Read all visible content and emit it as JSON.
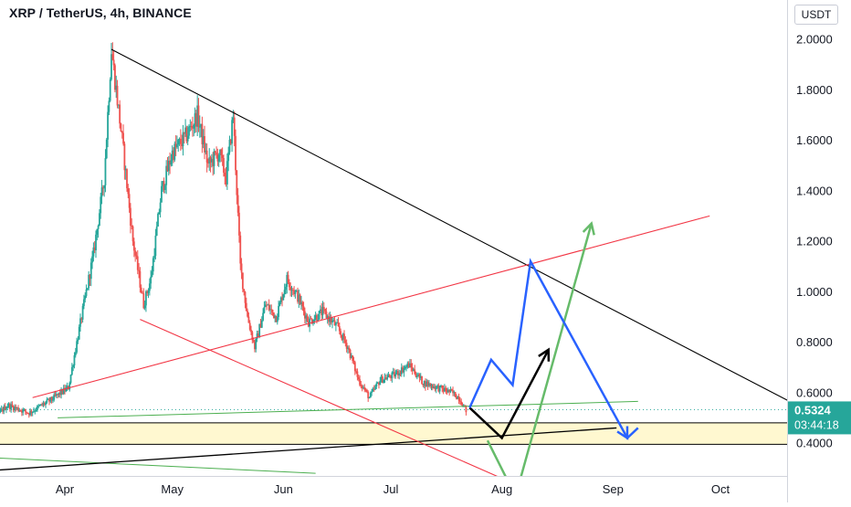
{
  "header": {
    "title": "XRP / TetherUS, 4h, BINANCE",
    "currency": "USDT"
  },
  "chart_data": {
    "type": "candlestick",
    "title": "XRP / TetherUS, 4h, BINANCE",
    "ylim": [
      0.26,
      2.1
    ],
    "y_ticks": [
      0.4,
      0.6,
      0.8,
      1.0,
      1.2,
      1.4,
      1.6,
      1.8,
      2.0
    ],
    "y_tick_labels": [
      "0.4000",
      "0.6000",
      "0.8000",
      "1.0000",
      "1.2000",
      "1.4000",
      "1.6000",
      "1.8000",
      "2.0000"
    ],
    "x_tick_labels": [
      "Apr",
      "May",
      "Jun",
      "Jul",
      "Aug",
      "Sep",
      "Oct"
    ],
    "last_price": "0.5324",
    "countdown": "03:44:18",
    "colors": {
      "up": "#26a69a",
      "down": "#ef5350",
      "support_zone": "#fff8d0"
    },
    "price_path": [
      [
        "Mar 04",
        0.44
      ],
      [
        "Mar 10",
        0.47
      ],
      [
        "Mar 16",
        0.55
      ],
      [
        "Mar 22",
        0.52
      ],
      [
        "Mar 28",
        0.57
      ],
      [
        "Apr 02",
        0.62
      ],
      [
        "Apr 05",
        0.85
      ],
      [
        "Apr 09",
        1.15
      ],
      [
        "Apr 12",
        1.45
      ],
      [
        "Apr 14",
        1.96
      ],
      [
        "Apr 17",
        1.6
      ],
      [
        "Apr 20",
        1.2
      ],
      [
        "Apr 23",
        0.95
      ],
      [
        "Apr 25",
        1.05
      ],
      [
        "Apr 28",
        1.4
      ],
      [
        "May 01",
        1.55
      ],
      [
        "May 05",
        1.62
      ],
      [
        "May 08",
        1.7
      ],
      [
        "May 11",
        1.5
      ],
      [
        "May 14",
        1.55
      ],
      [
        "May 16",
        1.45
      ],
      [
        "May 18",
        1.7
      ],
      [
        "May 20",
        1.1
      ],
      [
        "May 22",
        0.9
      ],
      [
        "May 24",
        0.78
      ],
      [
        "May 27",
        0.95
      ],
      [
        "May 30",
        0.9
      ],
      [
        "Jun 02",
        1.05
      ],
      [
        "Jun 05",
        0.98
      ],
      [
        "Jun 08",
        0.88
      ],
      [
        "Jun 12",
        0.92
      ],
      [
        "Jun 16",
        0.86
      ],
      [
        "Jun 19",
        0.78
      ],
      [
        "Jun 22",
        0.65
      ],
      [
        "Jun 25",
        0.58
      ],
      [
        "Jun 28",
        0.65
      ],
      [
        "Jul 02",
        0.67
      ],
      [
        "Jul 06",
        0.71
      ],
      [
        "Jul 10",
        0.64
      ],
      [
        "Jul 14",
        0.62
      ],
      [
        "Jul 18",
        0.6
      ],
      [
        "Jul 20",
        0.58
      ],
      [
        "Jul 22",
        0.53
      ]
    ],
    "drawings": {
      "descending_trendline": [
        [
          "Apr 14",
          1.96
        ],
        [
          "Oct 21",
          0.56
        ]
      ],
      "ascending_trendline_upper": [
        [
          "Mar 23",
          0.58
        ],
        [
          "Sep 28",
          1.3
        ]
      ],
      "lower_channel_line": [
        [
          "Apr 22",
          0.89
        ],
        [
          "Aug 01",
          0.26
        ]
      ],
      "green_near_line": [
        [
          "Mar 30",
          0.5
        ],
        [
          "Sep 08",
          0.565
        ]
      ],
      "black_support_line": [
        [
          "Feb 28",
          0.28
        ],
        [
          "Sep 02",
          0.46
        ]
      ],
      "green_lower_line": [
        [
          "Feb 28",
          0.35
        ],
        [
          "Jun 10",
          0.28
        ]
      ],
      "support_zone": [
        0.395,
        0.48
      ],
      "green_forecast_arrow": [
        [
          "Aug 06",
          0.25
        ],
        [
          "Aug 26",
          1.27
        ]
      ],
      "green_down_stroke": [
        [
          "Jul 28",
          0.41
        ],
        [
          "Aug 03",
          0.24
        ]
      ],
      "black_forecast": [
        [
          "Jul 23",
          0.54
        ],
        [
          "Aug 01",
          0.42
        ],
        [
          "Aug 14",
          0.77
        ]
      ],
      "blue_forecast": [
        [
          "Jul 23",
          0.54
        ],
        [
          "Jul 29",
          0.73
        ],
        [
          "Aug 04",
          0.63
        ],
        [
          "Aug 09",
          1.12
        ],
        [
          "Sep 05",
          0.42
        ],
        [
          "Sep 08",
          0.46
        ]
      ]
    }
  }
}
